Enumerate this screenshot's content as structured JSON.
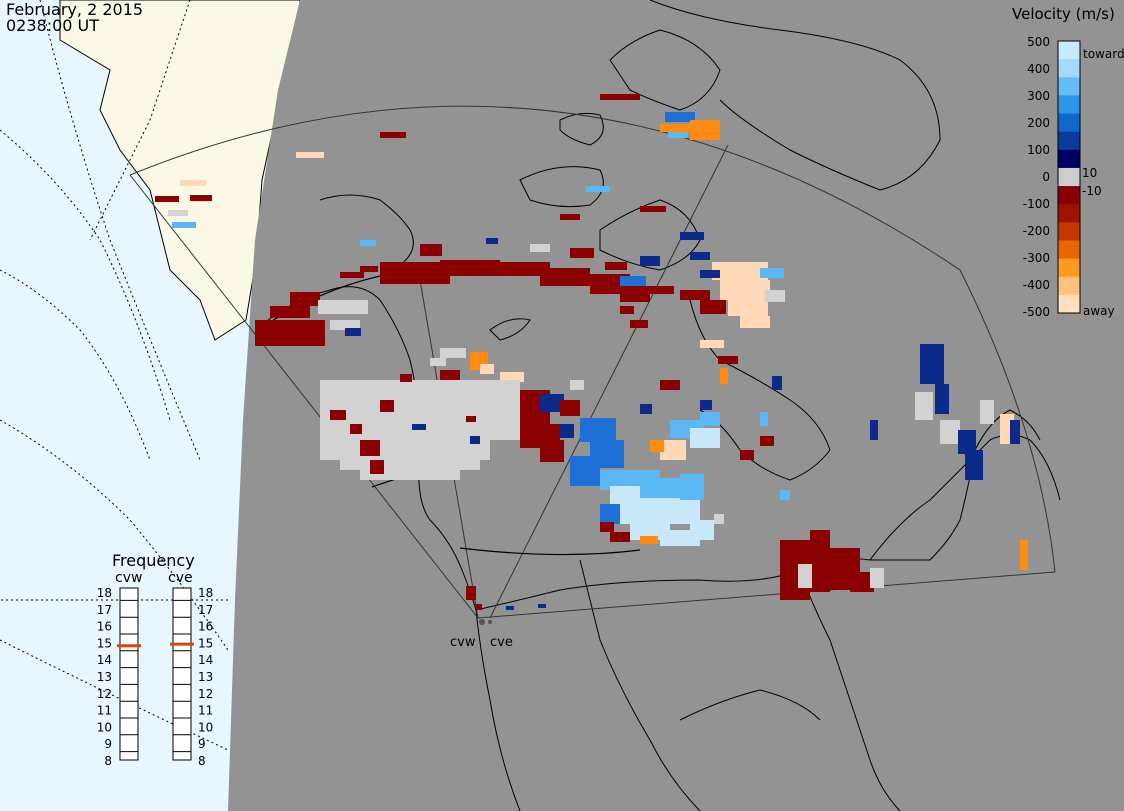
{
  "header": {
    "date": "February, 2 2015",
    "time": "0238:00 UT"
  },
  "colors": {
    "ocean": "#e8f6ff",
    "land_daylight": "#fbf8e6",
    "night_shade": "#939393",
    "coast": "#000000",
    "ground_scatter": "#d2d2d2"
  },
  "velocity_scale": {
    "title": "Velocity (m/s)",
    "ticks": [
      "500",
      "400",
      "300",
      "200",
      "100",
      "10",
      "0",
      "-10",
      "-100",
      "-200",
      "-300",
      "-400",
      "-500"
    ],
    "end_labels": {
      "top": "toward",
      "bottom": "away"
    },
    "colors": [
      "#c8eaff",
      "#a4d8ff",
      "#64bcf8",
      "#2c96ea",
      "#1166cc",
      "#0b3a9c",
      "#000066",
      "#cccccc",
      "#880000",
      "#a01200",
      "#c43800",
      "#e86600",
      "#ff9a20",
      "#ffc080",
      "#ffe0c0"
    ]
  },
  "frequency": {
    "title": "Frequency",
    "left_label": "cvw",
    "right_label": "cve",
    "levels": [
      "18",
      "17",
      "16",
      "15",
      "14",
      "13",
      "12",
      "11",
      "10",
      "9",
      "8"
    ],
    "cvw_mhz": 14.8,
    "cve_mhz": 14.9,
    "marker_color": "#d8460f"
  },
  "stations": [
    {
      "label": "cvw"
    },
    {
      "label": "cve"
    }
  ]
}
